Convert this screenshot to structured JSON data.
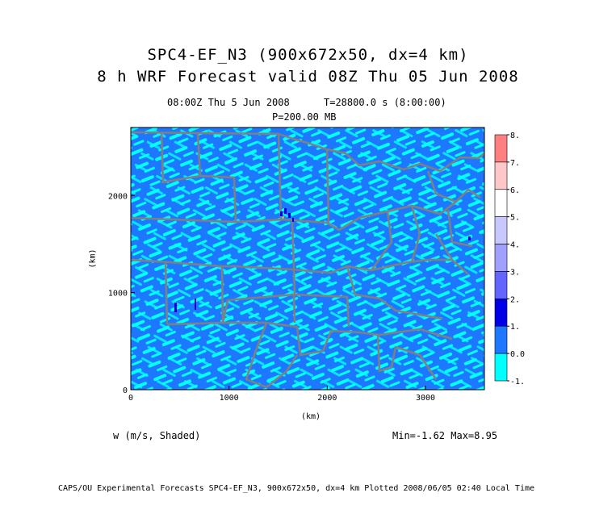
{
  "title_line1": "SPC4-EF_N3 (900x672x50, dx=4 km)",
  "title_line2": "8 h WRF Forecast valid 08Z Thu 05 Jun 2008",
  "time_label": "08:00Z Thu  5 Jun 2008",
  "time_seconds": "T=28800.0 s (8:00:00)",
  "pressure_label": "P=200.00 MB",
  "axes": {
    "xlabel": "(km)",
    "ylabel": "(km)",
    "x_ticks": [
      "0",
      "1000",
      "2000",
      "3000"
    ],
    "y_ticks": [
      "0",
      "1000",
      "2000"
    ],
    "x_range_km": [
      0,
      3600
    ],
    "y_range_km": [
      0,
      2700
    ]
  },
  "colorbar": {
    "labels": [
      "8.",
      "7.",
      "6.",
      "5.",
      "4.",
      "3.",
      "2.",
      "1.",
      "0.0",
      "-1."
    ],
    "colors": [
      "#ff8080",
      "#ffc8c8",
      "#ffffff",
      "#c8c8ff",
      "#a0a0ff",
      "#6464ff",
      "#0000e6",
      "#1e78ff",
      "#00ffff"
    ]
  },
  "field_label": "w (m/s, Shaded)",
  "minmax": "Min=-1.62 Max=8.95",
  "footer": "CAPS/OU Experimental Forecasts  SPC4-EF_N3, 900x672x50, dx=4 km  Plotted 2008/06/05 02:40 Local Time",
  "colors": {
    "field_dominant": "#1e78ff",
    "field_secondary": "#00ffff",
    "boundaries": "#808080"
  }
}
